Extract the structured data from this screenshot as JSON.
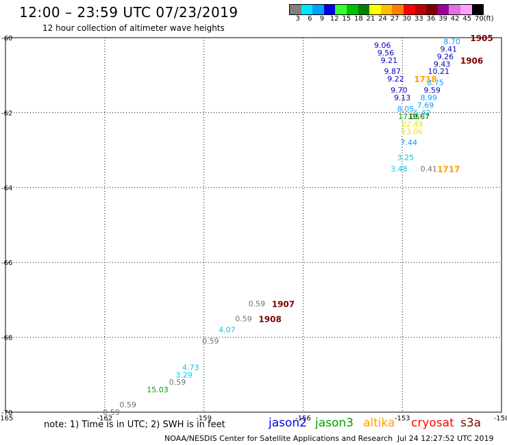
{
  "header": {
    "title": "12:00 – 23:59 UTC 07/23/2019",
    "subtitle": "12 hour collection of altimeter wave heights"
  },
  "legend": {
    "colors": [
      "#808080",
      "#00e5ff",
      "#00a0ff",
      "#0000e0",
      "#33ff33",
      "#00c000",
      "#008000",
      "#ffff00",
      "#ffc000",
      "#ff8000",
      "#ff0000",
      "#c00000",
      "#800000",
      "#a000a0",
      "#e070e0",
      "#ffa0ff",
      "#000000"
    ],
    "labels": [
      "3",
      "6",
      "9",
      "12",
      "15",
      "18",
      "21",
      "24",
      "27",
      "30",
      "33",
      "36",
      "39",
      "42",
      "45",
      "70",
      "(ft)"
    ]
  },
  "chart_data": {
    "type": "scatter",
    "xlim": [
      -165,
      -150
    ],
    "ylim": [
      -70,
      -60
    ],
    "x_ticks": [
      {
        "value": -165,
        "label": "-165"
      },
      {
        "value": -162,
        "label": "-162"
      },
      {
        "value": -159,
        "label": "-159"
      },
      {
        "value": -156,
        "label": "-156"
      },
      {
        "value": -153,
        "label": "-153"
      },
      {
        "value": -150,
        "label": "-150"
      }
    ],
    "y_ticks": [
      {
        "value": -60,
        "label": "-60"
      },
      {
        "value": -62,
        "label": "-62"
      },
      {
        "value": -64,
        "label": "-64"
      },
      {
        "value": -66,
        "label": "-66"
      },
      {
        "value": -68,
        "label": "-68"
      },
      {
        "value": -70,
        "label": "-70"
      }
    ],
    "grid": true,
    "points": [
      {
        "x": -153.6,
        "y": -60.2,
        "label": "9.06",
        "color": "#0000c0"
      },
      {
        "x": -153.5,
        "y": -60.4,
        "label": "9.56",
        "color": "#0000c0"
      },
      {
        "x": -153.4,
        "y": -60.6,
        "label": "9.21",
        "color": "#0000c0"
      },
      {
        "x": -153.3,
        "y": -60.9,
        "label": "9.87",
        "color": "#0000c0"
      },
      {
        "x": -153.2,
        "y": -61.1,
        "label": "9.22",
        "color": "#0000c0"
      },
      {
        "x": -153.1,
        "y": -61.4,
        "label": "9.70",
        "color": "#0000c0"
      },
      {
        "x": -153.0,
        "y": -61.6,
        "label": "9.13",
        "color": "#0000c0"
      },
      {
        "x": -152.9,
        "y": -61.9,
        "label": "8.05",
        "color": "#00a0ff"
      },
      {
        "x": -152.8,
        "y": -62.1,
        "label": "17.05",
        "color": "#00a000"
      },
      {
        "x": -152.7,
        "y": -62.3,
        "label": "22.49",
        "color": "#e8e800"
      },
      {
        "x": -152.7,
        "y": -62.5,
        "label": "23.06",
        "color": "#e8e800"
      },
      {
        "x": -152.8,
        "y": -62.8,
        "label": "7.44",
        "color": "#00a0ff"
      },
      {
        "x": -152.9,
        "y": -63.2,
        "label": "3.25",
        "color": "#00c8e8"
      },
      {
        "x": -153.1,
        "y": -63.5,
        "label": "3.48",
        "color": "#00c8e8"
      },
      {
        "x": -151.5,
        "y": -60.1,
        "label": "8.70",
        "color": "#00a0ff"
      },
      {
        "x": -151.6,
        "y": -60.3,
        "label": "9.41",
        "color": "#0000c0"
      },
      {
        "x": -151.7,
        "y": -60.5,
        "label": "9.26",
        "color": "#0000c0"
      },
      {
        "x": -151.8,
        "y": -60.7,
        "label": "9.43",
        "color": "#0000c0"
      },
      {
        "x": -151.9,
        "y": -60.9,
        "label": "10.21",
        "color": "#0000c0"
      },
      {
        "x": -152.0,
        "y": -61.2,
        "label": "8.75",
        "color": "#00a0ff"
      },
      {
        "x": -152.1,
        "y": -61.4,
        "label": "9.59",
        "color": "#0000c0"
      },
      {
        "x": -152.2,
        "y": -61.6,
        "label": "8.99",
        "color": "#00a0ff"
      },
      {
        "x": -152.3,
        "y": -61.8,
        "label": "7.69",
        "color": "#00a0ff"
      },
      {
        "x": -152.4,
        "y": -62.0,
        "label": "5.42",
        "color": "#00c8e8"
      },
      {
        "x": -152.5,
        "y": -62.1,
        "label": "19.67",
        "color": "#006000"
      },
      {
        "x": -152.2,
        "y": -63.5,
        "label": "0.41",
        "color": "#707070"
      },
      {
        "x": -157.4,
        "y": -67.1,
        "label": "0.59",
        "color": "#707070"
      },
      {
        "x": -157.8,
        "y": -67.5,
        "label": "0.59",
        "color": "#707070"
      },
      {
        "x": -158.3,
        "y": -67.8,
        "label": "4.07",
        "color": "#00c8e8"
      },
      {
        "x": -158.8,
        "y": -68.1,
        "label": "0.59",
        "color": "#707070"
      },
      {
        "x": -159.4,
        "y": -68.8,
        "label": "4.73",
        "color": "#00c8e8"
      },
      {
        "x": -159.6,
        "y": -69.0,
        "label": "3.29",
        "color": "#00c8e8"
      },
      {
        "x": -159.8,
        "y": -69.2,
        "label": "0.59",
        "color": "#707070"
      },
      {
        "x": -160.4,
        "y": -69.4,
        "label": "15.03",
        "color": "#00a000"
      },
      {
        "x": -161.3,
        "y": -69.8,
        "label": "0.59",
        "color": "#707070"
      },
      {
        "x": -161.8,
        "y": -70.0,
        "label": "0.59",
        "color": "#707070"
      }
    ],
    "annotations": [
      {
        "x": -150.6,
        "y": -60.0,
        "label": "1905",
        "color": "#800000"
      },
      {
        "x": -150.9,
        "y": -60.6,
        "label": "1906",
        "color": "#800000"
      },
      {
        "x": -152.3,
        "y": -61.1,
        "label": "1718",
        "color": "#ffa000"
      },
      {
        "x": -151.6,
        "y": -63.5,
        "label": "1717",
        "color": "#ffa000"
      },
      {
        "x": -156.6,
        "y": -67.1,
        "label": "1907",
        "color": "#800000"
      },
      {
        "x": -157.0,
        "y": -67.5,
        "label": "1908",
        "color": "#800000"
      }
    ]
  },
  "footer": {
    "note": "note: 1) Time is in UTC; 2) SWH is in feet",
    "satellites": [
      {
        "name": "jason2",
        "color": "#0000e0"
      },
      {
        "name": "jason3",
        "color": "#00a000"
      },
      {
        "name": "altika",
        "color": "#ffa000"
      },
      {
        "name": "cryosat",
        "color": "#ff0000"
      },
      {
        "name": "s3a",
        "color": "#800000"
      }
    ],
    "credit": "NOAA/NESDIS Center for Satellite Applications and Research",
    "timestamp": "Jul 24 12:27:52 UTC 2019"
  }
}
